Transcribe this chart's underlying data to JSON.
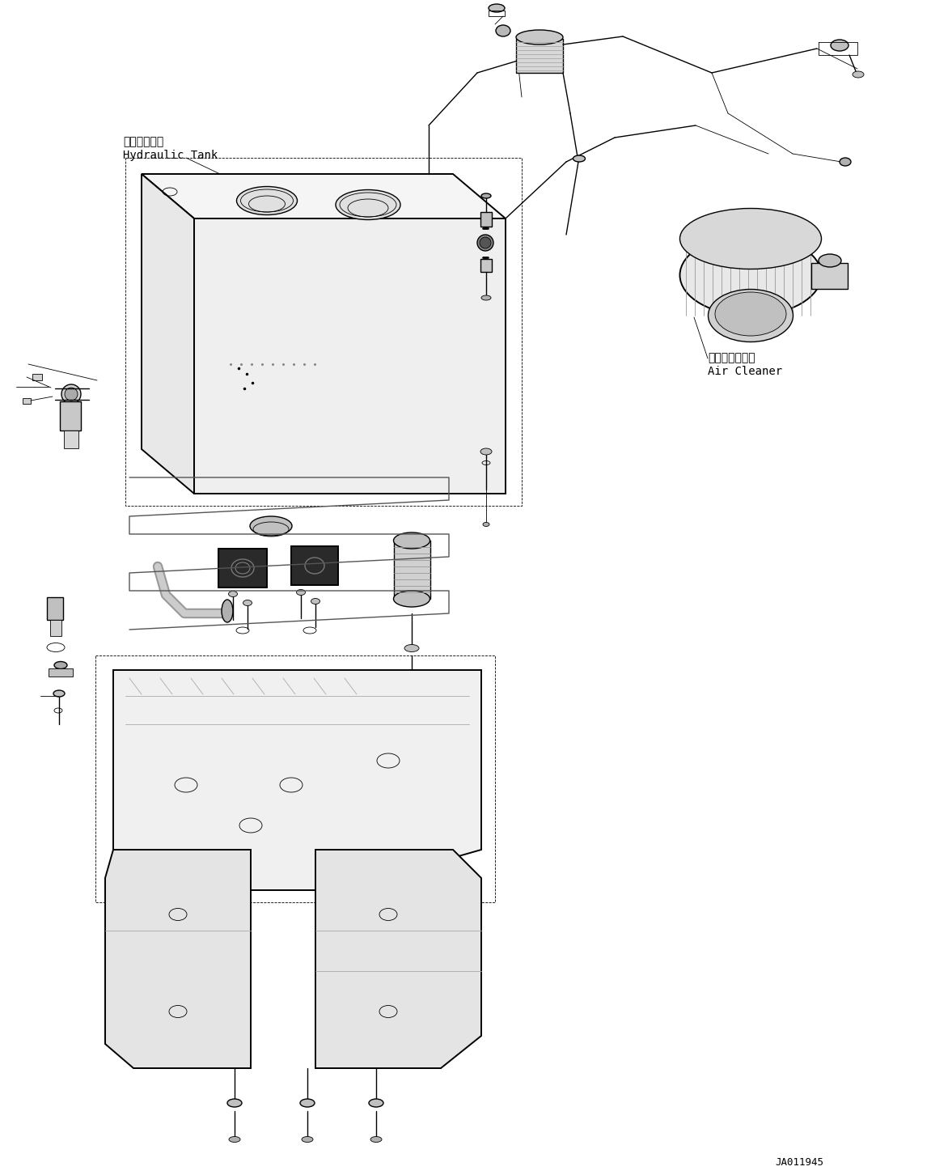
{
  "bg_color": "#ffffff",
  "line_color": "#000000",
  "figsize": [
    11.51,
    14.52
  ],
  "dpi": 100,
  "label_hydraulic_tank_jp": "作動油タンク",
  "label_hydraulic_tank_en": "Hydraulic Tank",
  "label_air_cleaner_jp": "エアークリーナ",
  "label_air_cleaner_en": "Air Cleaner",
  "label_code": "JA011945",
  "font_size_label": 10,
  "font_size_code": 9,
  "font_family": "monospace"
}
